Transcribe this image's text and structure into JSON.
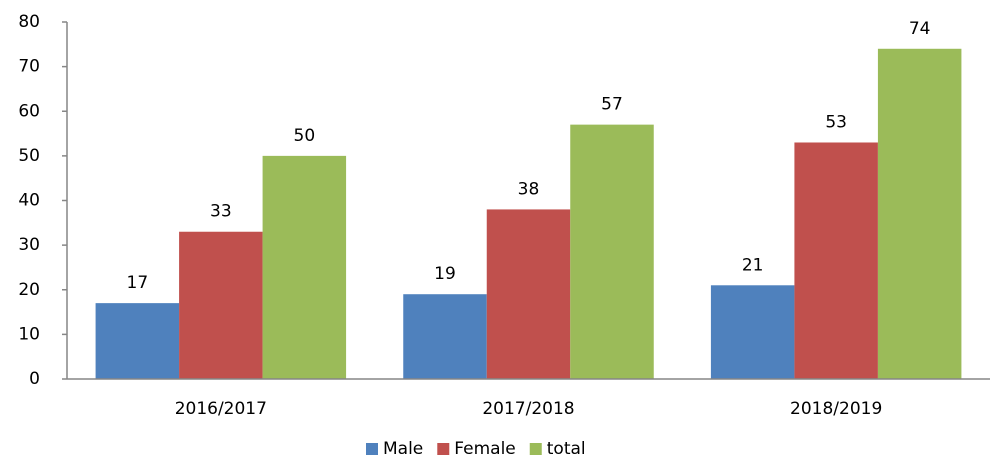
{
  "chart_data": {
    "type": "bar",
    "categories": [
      "2016/2017",
      "2017/2018",
      "2018/2019"
    ],
    "series": [
      {
        "name": "Male",
        "color": "#4f81bd",
        "values": [
          17,
          19,
          21
        ]
      },
      {
        "name": "Female",
        "color": "#c0504d",
        "values": [
          33,
          38,
          53
        ]
      },
      {
        "name": "total",
        "color": "#9bbb59",
        "values": [
          50,
          57,
          74
        ]
      }
    ],
    "ylim": [
      0,
      80
    ],
    "yticks": [
      0,
      10,
      20,
      30,
      40,
      50,
      60,
      70,
      80
    ],
    "grid": false,
    "legend": "bottom"
  }
}
